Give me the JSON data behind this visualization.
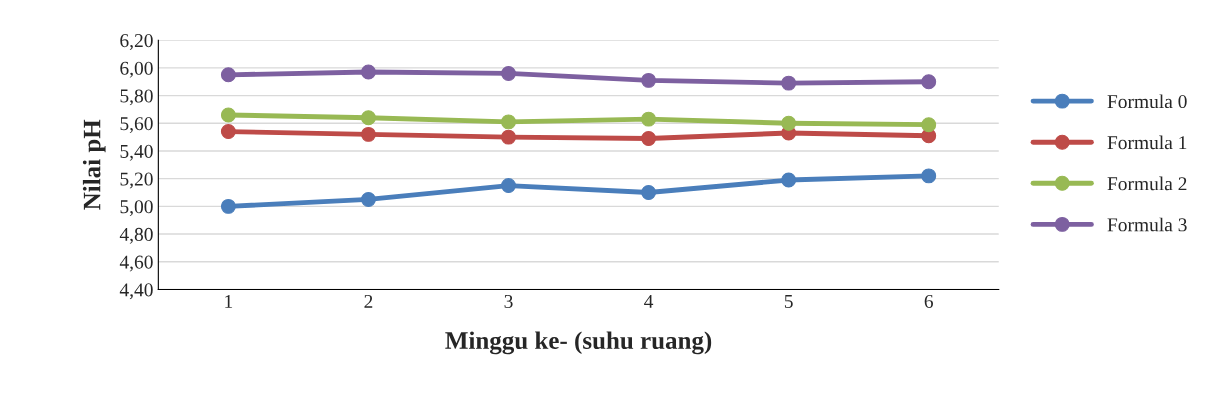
{
  "chart_data": {
    "type": "line",
    "xlabel": "Minggu ke- (suhu ruang)",
    "ylabel": "Nilai pH",
    "categories": [
      "1",
      "2",
      "3",
      "4",
      "5",
      "6"
    ],
    "series": [
      {
        "name": "Formula 0",
        "color": "#4a7ebb",
        "values": [
          5.0,
          5.05,
          5.15,
          5.1,
          5.19,
          5.22
        ]
      },
      {
        "name": "Formula 1",
        "color": "#be4b48",
        "values": [
          5.54,
          5.52,
          5.5,
          5.49,
          5.53,
          5.51
        ]
      },
      {
        "name": "Formula 2",
        "color": "#98b954",
        "values": [
          5.66,
          5.64,
          5.61,
          5.63,
          5.6,
          5.59
        ]
      },
      {
        "name": "Formula 3",
        "color": "#7d60a0",
        "values": [
          5.95,
          5.97,
          5.96,
          5.91,
          5.89,
          5.9
        ]
      }
    ],
    "ylim": [
      4.4,
      6.2
    ],
    "yticks": [
      {
        "value": 4.4,
        "label": "4,40"
      },
      {
        "value": 4.6,
        "label": "4,60"
      },
      {
        "value": 4.8,
        "label": "4,80"
      },
      {
        "value": 5.0,
        "label": "5,00"
      },
      {
        "value": 5.2,
        "label": "5,20"
      },
      {
        "value": 5.4,
        "label": "5,40"
      },
      {
        "value": 5.6,
        "label": "5,60"
      },
      {
        "value": 5.8,
        "label": "5,80"
      },
      {
        "value": 6.0,
        "label": "6,00"
      },
      {
        "value": 6.2,
        "label": "6,20"
      }
    ],
    "grid": "y",
    "legend": "right",
    "marker": "circle",
    "line_style": "solid"
  }
}
